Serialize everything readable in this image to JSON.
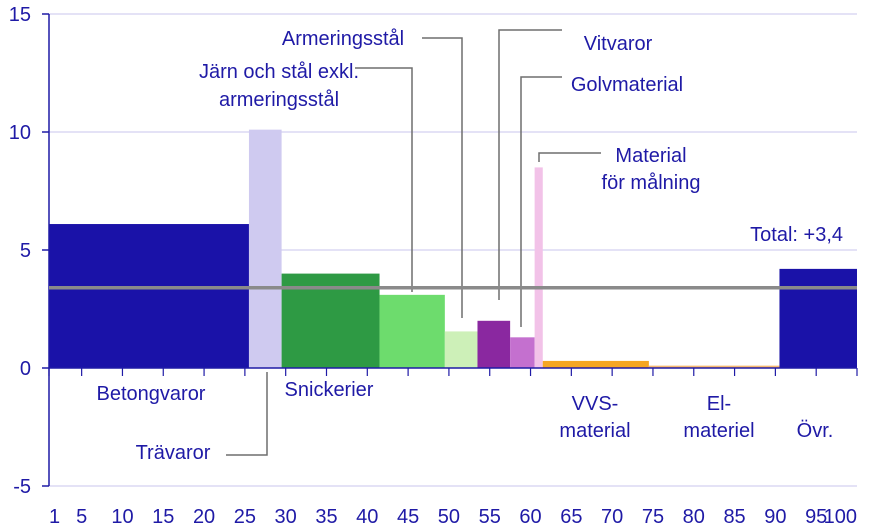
{
  "chart_data": {
    "type": "bar",
    "variable_width": true,
    "x_range": [
      1,
      100
    ],
    "ylim": [
      -5,
      15
    ],
    "y_ticks": [
      15,
      10,
      5,
      0,
      -5
    ],
    "x_tick_labels": [
      "1",
      "5",
      "10",
      "15",
      "20",
      "25",
      "30",
      "35",
      "40",
      "45",
      "50",
      "55",
      "60",
      "65",
      "70",
      "75",
      "80",
      "85",
      "90",
      "95",
      "100"
    ],
    "grid": "horizontal",
    "bars": [
      {
        "label": "Betongvaror",
        "x0": 1,
        "x1": 25.5,
        "value": 6.1,
        "color": "#1a12a8"
      },
      {
        "label": "Trävaror",
        "x0": 25.5,
        "x1": 29.5,
        "value": 10.1,
        "color": "#cfcaf0"
      },
      {
        "label": "Snickerier",
        "x0": 29.5,
        "x1": 41.5,
        "value": 4.0,
        "color": "#2e9a44"
      },
      {
        "label": "Järn och stål exkl. armeringsstål",
        "x0": 41.5,
        "x1": 49.5,
        "value": 3.1,
        "color": "#6ddc6d"
      },
      {
        "label": "Armeringsstål",
        "x0": 49.5,
        "x1": 53.5,
        "value": 1.55,
        "color": "#cdf0b8"
      },
      {
        "label": "Vitvaror",
        "x0": 53.5,
        "x1": 57.5,
        "value": 2.0,
        "color": "#8a28a0"
      },
      {
        "label": "Golvmaterial",
        "x0": 57.5,
        "x1": 60.5,
        "value": 1.3,
        "color": "#c470cf"
      },
      {
        "label": "Material för målning",
        "x0": 60.5,
        "x1": 61.5,
        "value": 8.5,
        "color": "#f2c2e8"
      },
      {
        "label": "VVS-material",
        "x0": 61.5,
        "x1": 74.5,
        "value": 0.3,
        "color": "#f5a623"
      },
      {
        "label": "El-materiel",
        "x0": 74.5,
        "x1": 90.5,
        "value": 0.1,
        "color": "#f5b870"
      },
      {
        "label": "Övr.",
        "x0": 90.5,
        "x1": 100,
        "value": 4.2,
        "color": "#1a12a8"
      }
    ],
    "total": {
      "value": 3.4,
      "label": "Total: +3,4",
      "color": "#8a8a8a"
    },
    "annotations": {
      "betongvaror": "Betongvaror",
      "travaror": "Trävaror",
      "snickerier": "Snickerier",
      "jarn_line1": "Järn och stål exkl.",
      "jarn_line2": "armeringsstål",
      "armeringsstal": "Armeringsstål",
      "vitvaror": "Vitvaror",
      "golvmaterial": "Golvmaterial",
      "malning_line1": "Material",
      "malning_line2": "för målning",
      "vvs_line1": "VVS-",
      "vvs_line2": "material",
      "el_line1": "El-",
      "el_line2": "materiel",
      "ovr": "Övr."
    }
  }
}
